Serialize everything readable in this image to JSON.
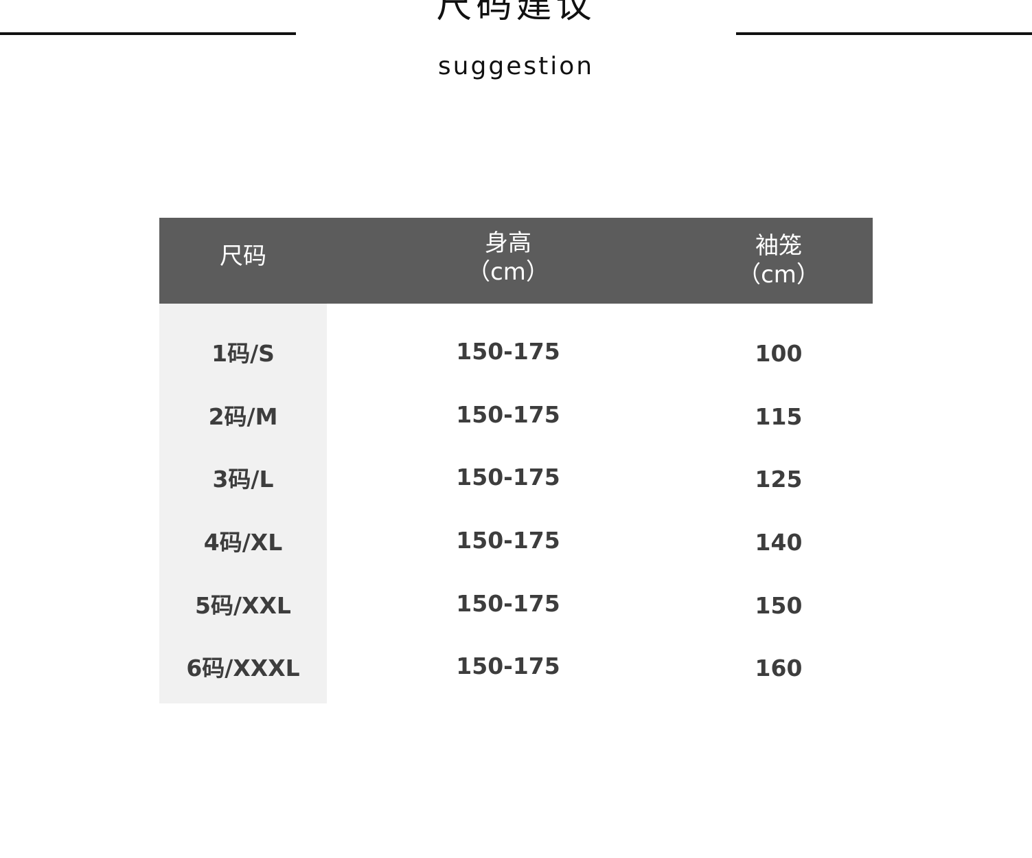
{
  "title": "尺码建议",
  "subtitle": "suggestion",
  "table": {
    "headers": [
      {
        "line1": "尺码",
        "line2": ""
      },
      {
        "line1": "身高",
        "line2": "（cm）"
      },
      {
        "line1": "袖笼",
        "line2": "（cm）"
      }
    ],
    "rows": [
      {
        "size": "1码/S",
        "height": "150-175",
        "sleeve": "100"
      },
      {
        "size": "2码/M",
        "height": "150-175",
        "sleeve": "115"
      },
      {
        "size": "3码/L",
        "height": "150-175",
        "sleeve": "125"
      },
      {
        "size": "4码/XL",
        "height": "150-175",
        "sleeve": "140"
      },
      {
        "size": "5码/XXL",
        "height": "150-175",
        "sleeve": "150"
      },
      {
        "size": "6码/XXXL",
        "height": "150-175",
        "sleeve": "160"
      }
    ]
  },
  "colors": {
    "header_bg": "#5c5c5c",
    "size_column_bg": "#f1f1f1",
    "text": "#3d3d3d"
  }
}
